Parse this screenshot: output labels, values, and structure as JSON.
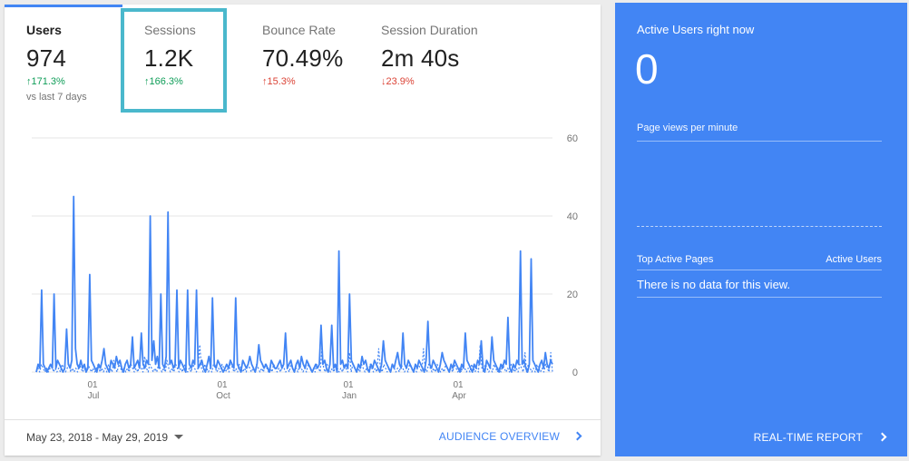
{
  "metrics": [
    {
      "label": "Users",
      "value": "974",
      "change": "171.3%",
      "direction": "up",
      "tone": "good",
      "selected": true
    },
    {
      "label": "Sessions",
      "value": "1.2K",
      "change": "166.3%",
      "direction": "up",
      "tone": "good",
      "selected": false,
      "highlighted": true
    },
    {
      "label": "Bounce Rate",
      "value": "70.49%",
      "change": "15.3%",
      "direction": "up",
      "tone": "bad",
      "selected": false
    },
    {
      "label": "Session Duration",
      "value": "2m 40s",
      "change": "23.9%",
      "direction": "down",
      "tone": "bad",
      "selected": false
    }
  ],
  "compare_label": "vs last 7 days",
  "chart_data": {
    "type": "line",
    "title": "",
    "xlabel": "",
    "ylabel": "",
    "ylim": [
      0,
      60
    ],
    "y_ticks": [
      "60",
      "40",
      "20",
      "0"
    ],
    "x_ticks": [
      {
        "day": "01",
        "month": "Jul"
      },
      {
        "day": "01",
        "month": "Oct"
      },
      {
        "day": "01",
        "month": "Jan"
      },
      {
        "day": "01",
        "month": "Apr"
      }
    ],
    "series": [
      {
        "style": "solid",
        "color": "#4285f4",
        "values": [
          0,
          2,
          1,
          21,
          2,
          1,
          0,
          1,
          2,
          1,
          20,
          1,
          3,
          2,
          1,
          0,
          1,
          11,
          2,
          1,
          3,
          45,
          6,
          2,
          1,
          3,
          1,
          2,
          0,
          1,
          25,
          3,
          2,
          1,
          0,
          2,
          1,
          3,
          6,
          2,
          1,
          0,
          3,
          2,
          1,
          4,
          2,
          3,
          1,
          0,
          2,
          3,
          1,
          2,
          9,
          1,
          2,
          3,
          1,
          10,
          2,
          1,
          3,
          2,
          40,
          3,
          8,
          2,
          4,
          1,
          20,
          2,
          1,
          4,
          41,
          2,
          3,
          1,
          2,
          21,
          1,
          3,
          2,
          1,
          0,
          21,
          2,
          1,
          3,
          2,
          21,
          1,
          2,
          3,
          1,
          0,
          2,
          4,
          1,
          19,
          2,
          1,
          3,
          2,
          1,
          0,
          1,
          2,
          1,
          3,
          2,
          1,
          19,
          2,
          1,
          0,
          3,
          2,
          1,
          2,
          4,
          2,
          1,
          0,
          2,
          7,
          3,
          2,
          1,
          2,
          1,
          0,
          3,
          2,
          1,
          1,
          2,
          3,
          1,
          2,
          10,
          1,
          2,
          3,
          1,
          0,
          2,
          3,
          1,
          4,
          2,
          1,
          3,
          2,
          1,
          0,
          1,
          2,
          1,
          2,
          12,
          2,
          3,
          1,
          0,
          2,
          12,
          1,
          2,
          0,
          31,
          2,
          3,
          1,
          2,
          1,
          20,
          3,
          2,
          1,
          0,
          2,
          1,
          4,
          2,
          3,
          1,
          0,
          2,
          1,
          3,
          2,
          1,
          0,
          2,
          8,
          3,
          2,
          1,
          0,
          2,
          1,
          3,
          5,
          2,
          1,
          10,
          2,
          1,
          3,
          2,
          1,
          0,
          2,
          1,
          3,
          2,
          1,
          0,
          3,
          13,
          2,
          1,
          3,
          2,
          1,
          0,
          2,
          5,
          3,
          2,
          1,
          0,
          2,
          1,
          3,
          2,
          1,
          0,
          2,
          1,
          10,
          3,
          2,
          1,
          0,
          2,
          1,
          3,
          2,
          8,
          1,
          0,
          3,
          2,
          1,
          9,
          3,
          2,
          1,
          0,
          2,
          1,
          3,
          2,
          14,
          1,
          0,
          2,
          1,
          3,
          2,
          31,
          2,
          3,
          1,
          0,
          2,
          29,
          3,
          2,
          1,
          0,
          2,
          3,
          1,
          5,
          2,
          1,
          3,
          2
        ],
        "visible_peaks": [
          22,
          21,
          45,
          25,
          40,
          41,
          21,
          21,
          20,
          31,
          30,
          29
        ]
      },
      {
        "style": "dashed",
        "color": "#4285f4",
        "values": [
          0,
          1,
          0,
          2,
          1,
          0,
          1,
          0,
          1,
          2,
          0,
          1,
          0,
          1,
          0,
          2,
          1,
          0,
          1,
          2,
          0,
          1,
          0,
          1,
          0,
          2,
          1,
          0,
          1,
          0,
          2,
          1,
          0,
          1,
          0,
          1,
          2,
          0,
          1,
          0,
          1,
          0,
          2,
          1,
          0,
          3,
          1,
          0,
          2,
          1,
          0,
          1,
          0,
          1,
          0,
          2,
          1,
          0,
          1,
          0,
          2,
          1,
          0,
          4,
          1,
          0,
          2,
          1,
          0,
          1,
          0,
          2,
          1,
          0,
          1,
          0,
          3,
          1,
          0,
          1,
          0,
          2,
          1,
          0,
          1,
          0,
          2,
          1,
          0,
          1,
          0,
          2,
          1,
          0,
          1,
          7,
          1,
          0,
          2,
          1,
          0,
          1,
          0,
          2,
          1,
          0,
          1,
          0,
          2,
          1,
          0,
          1,
          0,
          3,
          1,
          0,
          1,
          0,
          2,
          1,
          0,
          1,
          0,
          2,
          1,
          0,
          1,
          0,
          2,
          1,
          0,
          1,
          0,
          2,
          1,
          0,
          1,
          0,
          2,
          1,
          0,
          1,
          0,
          2,
          1,
          0,
          1,
          0,
          2,
          1,
          0,
          1,
          0,
          2,
          1,
          0,
          1,
          0,
          2,
          1,
          0,
          1,
          0,
          2,
          1,
          0,
          6,
          1,
          0,
          2,
          1,
          0,
          1,
          0,
          2,
          1,
          0,
          1,
          0,
          2,
          1,
          0,
          5,
          0,
          2,
          1,
          0,
          1,
          0,
          2,
          1,
          0,
          1,
          0,
          2,
          1,
          0,
          1,
          0,
          6,
          1,
          0,
          2,
          1,
          0,
          1,
          0,
          2,
          1,
          0,
          1,
          0,
          2,
          1,
          0,
          1,
          0,
          2,
          1,
          0,
          1,
          0,
          2,
          1,
          0,
          6,
          1,
          0,
          2,
          1,
          0,
          1,
          0,
          2,
          1,
          0,
          1,
          0,
          2,
          1,
          0,
          1,
          0,
          2,
          1,
          0,
          1,
          0,
          2,
          1,
          0,
          1,
          0,
          2,
          1,
          0,
          1,
          0,
          7,
          1,
          0,
          2,
          1,
          0,
          1,
          0,
          2,
          1,
          0,
          1,
          0,
          2,
          1,
          0,
          1,
          0,
          2,
          1,
          0,
          1,
          0,
          2,
          1,
          0,
          5,
          0,
          2,
          1,
          0,
          1,
          0,
          2,
          1,
          0,
          1,
          0,
          2,
          1,
          0,
          5,
          0
        ]
      }
    ]
  },
  "footer": {
    "date_range": "May 23, 2018 - May 29, 2019",
    "audience_link": "AUDIENCE OVERVIEW"
  },
  "realtime": {
    "title": "Active Users right now",
    "count": "0",
    "pageviews_label": "Page views per minute",
    "top_pages_label": "Top Active Pages",
    "active_users_label": "Active Users",
    "no_data": "There is no data for this view.",
    "report_link": "REAL-TIME REPORT"
  },
  "colors": {
    "accent": "#4285f4",
    "highlight": "#4ab8cc",
    "good": "#0f9d58",
    "bad": "#db4437"
  }
}
